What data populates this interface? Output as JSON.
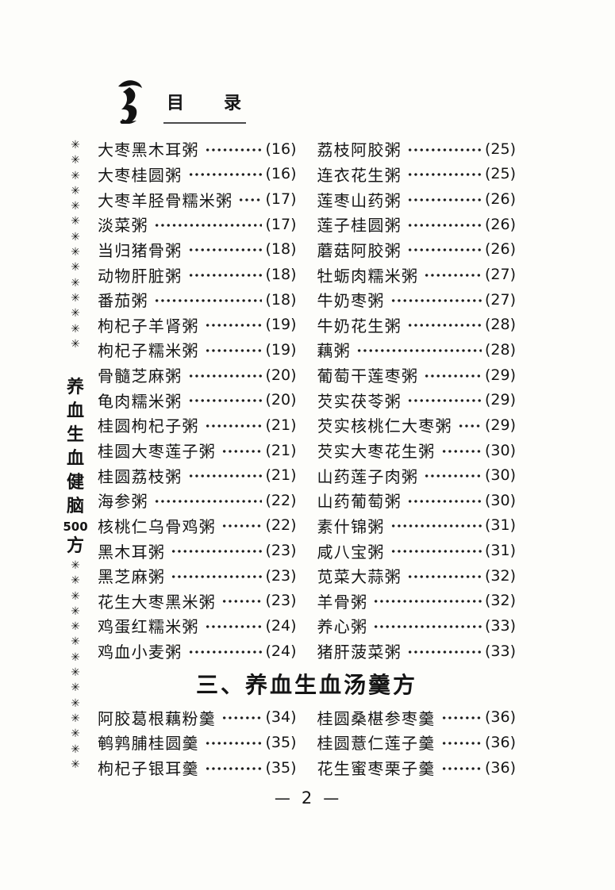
{
  "header": {
    "title": "目　　录",
    "logo_icon": "brush-figure-logo"
  },
  "margin": {
    "mark_symbol": "✳",
    "top_mark_count": 14,
    "bottom_mark_count": 14,
    "book_title_chars": [
      "养",
      "血",
      "生",
      "血",
      "健",
      "脑",
      "500",
      "方"
    ]
  },
  "toc": {
    "rows": [
      {
        "left": {
          "title": "大枣黑木耳粥",
          "page": "(16)"
        },
        "right": {
          "title": "荔枝阿胶粥",
          "page": "(25)"
        }
      },
      {
        "left": {
          "title": "大枣桂圆粥",
          "page": "(16)"
        },
        "right": {
          "title": "连衣花生粥",
          "page": "(25)"
        }
      },
      {
        "left": {
          "title": "大枣羊胫骨糯米粥",
          "page": "(17)"
        },
        "right": {
          "title": "莲枣山药粥",
          "page": "(26)"
        }
      },
      {
        "left": {
          "title": "淡菜粥",
          "page": "(17)"
        },
        "right": {
          "title": "莲子桂圆粥",
          "page": "(26)"
        }
      },
      {
        "left": {
          "title": "当归猪骨粥",
          "page": "(18)"
        },
        "right": {
          "title": "蘑菇阿胶粥",
          "page": "(26)"
        }
      },
      {
        "left": {
          "title": "动物肝脏粥",
          "page": "(18)"
        },
        "right": {
          "title": "牡蛎肉糯米粥",
          "page": "(27)"
        }
      },
      {
        "left": {
          "title": "番茄粥",
          "page": "(18)"
        },
        "right": {
          "title": "牛奶枣粥",
          "page": "(27)"
        }
      },
      {
        "left": {
          "title": "枸杞子羊肾粥",
          "page": "(19)"
        },
        "right": {
          "title": "牛奶花生粥",
          "page": "(28)"
        }
      },
      {
        "left": {
          "title": "枸杞子糯米粥",
          "page": "(19)"
        },
        "right": {
          "title": "藕粥",
          "page": "(28)"
        }
      },
      {
        "left": {
          "title": "骨髓芝麻粥",
          "page": "(20)"
        },
        "right": {
          "title": "葡萄干莲枣粥",
          "page": "(29)"
        }
      },
      {
        "left": {
          "title": "龟肉糯米粥",
          "page": "(20)"
        },
        "right": {
          "title": "芡实茯苓粥",
          "page": "(29)"
        }
      },
      {
        "left": {
          "title": "桂圆枸杞子粥",
          "page": "(21)"
        },
        "right": {
          "title": "芡实核桃仁大枣粥",
          "page": "(29)"
        }
      },
      {
        "left": {
          "title": "桂圆大枣莲子粥",
          "page": "(21)"
        },
        "right": {
          "title": "芡实大枣花生粥",
          "page": "(30)"
        }
      },
      {
        "left": {
          "title": "桂圆荔枝粥",
          "page": "(21)"
        },
        "right": {
          "title": "山药莲子肉粥",
          "page": "(30)"
        }
      },
      {
        "left": {
          "title": "海参粥",
          "page": "(22)"
        },
        "right": {
          "title": "山药葡萄粥",
          "page": "(30)"
        }
      },
      {
        "left": {
          "title": "核桃仁乌骨鸡粥",
          "page": "(22)"
        },
        "right": {
          "title": "素什锦粥",
          "page": "(31)"
        }
      },
      {
        "left": {
          "title": "黑木耳粥",
          "page": "(23)"
        },
        "right": {
          "title": "咸八宝粥",
          "page": "(31)"
        }
      },
      {
        "left": {
          "title": "黑芝麻粥",
          "page": "(23)"
        },
        "right": {
          "title": "苋菜大蒜粥",
          "page": "(32)"
        }
      },
      {
        "left": {
          "title": "花生大枣黑米粥",
          "page": "(23)"
        },
        "right": {
          "title": "羊骨粥",
          "page": "(32)"
        }
      },
      {
        "left": {
          "title": "鸡蛋红糯米粥",
          "page": "(24)"
        },
        "right": {
          "title": "养心粥",
          "page": "(33)"
        }
      },
      {
        "left": {
          "title": "鸡血小麦粥",
          "page": "(24)"
        },
        "right": {
          "title": "猪肝菠菜粥",
          "page": "(33)"
        }
      }
    ],
    "section_heading": "三、养血生血汤羹方",
    "soup_rows": [
      {
        "left": {
          "title": "阿胶葛根藕粉羹",
          "page": "(34)"
        },
        "right": {
          "title": "桂圆桑椹参枣羹",
          "page": "(36)"
        }
      },
      {
        "left": {
          "title": "鹌鹑脯桂圆羹",
          "page": "(35)"
        },
        "right": {
          "title": "桂圆薏仁莲子羹",
          "page": "(36)"
        }
      },
      {
        "left": {
          "title": "枸杞子银耳羹",
          "page": "(35)"
        },
        "right": {
          "title": "花生蜜枣栗子羹",
          "page": "(36)"
        }
      }
    ]
  },
  "footer": {
    "dash": "—",
    "page_number": "2"
  },
  "colors": {
    "paper": "#fdfdfa",
    "ink": "#151515"
  }
}
